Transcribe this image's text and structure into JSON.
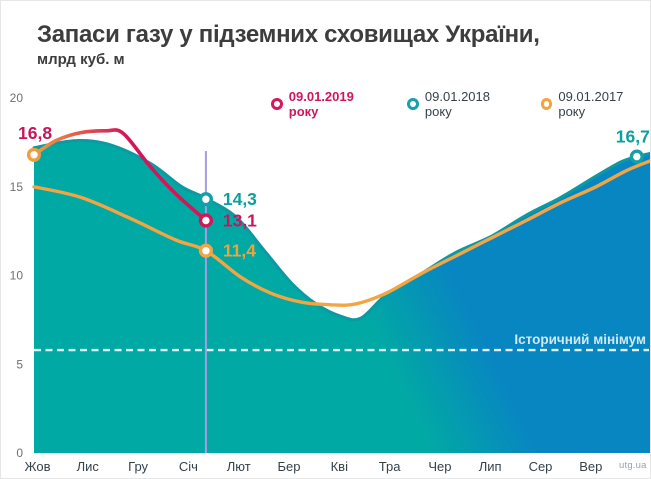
{
  "header": {
    "title": "Запаси газу у підземних сховищах України,",
    "subtitle": "млрд куб. м"
  },
  "legend": [
    {
      "label": "09.01.2019 року",
      "color": "#d8175c",
      "emphasis": true
    },
    {
      "label": "09.01.2018 року",
      "color": "#17a1a9",
      "emphasis": false
    },
    {
      "label": "09.01.2017 року",
      "color": "#f2a43f",
      "emphasis": false
    }
  ],
  "watermark": "utg.ua",
  "chart_data": {
    "type": "area",
    "title": "Запаси газу у підземних сховищах України, млрд куб. м",
    "x_categories": [
      "Жов",
      "Лис",
      "Гру",
      "Січ",
      "Лют",
      "Бер",
      "Кві",
      "Тра",
      "Чер",
      "Лип",
      "Сер",
      "Вер"
    ],
    "ylim": [
      0,
      20
    ],
    "yticks": [
      0,
      5,
      10,
      15,
      20
    ],
    "grid": false,
    "legend_position": "top",
    "annotation": {
      "label": "Історичний мінімум",
      "value": 5.8
    },
    "measure_line_x": 3.37,
    "colors": {
      "area_teal": "#01a9a4",
      "area_blue": "#0886c2",
      "stroke_2018": "#0c99a2",
      "line_2017": "#f2a542",
      "line_2019_start": "#ef9f3e",
      "line_2019_end": "#d3165a",
      "label_teal": "#0aa0a0",
      "label_crimson": "#cb155b",
      "label_orange": "#f0a23c",
      "measure_line": "#a99ce4",
      "dashed_line": "#ffffff",
      "annotation_text": "#cfe8f2",
      "ytick_text": "#707070",
      "xtick_text": "#36424a"
    },
    "series": [
      {
        "name": "09.01.2018 року",
        "style": "area",
        "points": [
          [
            0,
            17.2
          ],
          [
            0.82,
            17.6
          ],
          [
            1.51,
            17.35
          ],
          [
            2.29,
            16.3
          ],
          [
            2.9,
            15.0
          ],
          [
            3.37,
            14.35
          ],
          [
            3.96,
            13.3
          ],
          [
            4.49,
            11.5
          ],
          [
            5.04,
            9.6
          ],
          [
            5.53,
            8.4
          ],
          [
            6.02,
            7.7
          ],
          [
            6.41,
            7.6
          ],
          [
            6.9,
            8.9
          ],
          [
            7.59,
            10.1
          ],
          [
            8.27,
            11.3
          ],
          [
            8.96,
            12.2
          ],
          [
            9.65,
            13.4
          ],
          [
            10.33,
            14.4
          ],
          [
            11.02,
            15.6
          ],
          [
            11.51,
            16.4
          ],
          [
            11.82,
            16.7
          ],
          [
            12.12,
            16.9
          ]
        ],
        "markers": [
          {
            "x": 3.37,
            "y": 14.3,
            "label": "14,3",
            "color_key": "label_teal"
          },
          {
            "x": 11.82,
            "y": 16.7,
            "label": "16,7",
            "color_key": "label_teal"
          }
        ]
      },
      {
        "name": "09.01.2017 року",
        "style": "line",
        "points": [
          [
            0,
            15.0
          ],
          [
            0.92,
            14.4
          ],
          [
            1.9,
            13.2
          ],
          [
            2.78,
            12.0
          ],
          [
            3.37,
            11.4
          ],
          [
            4.06,
            9.9
          ],
          [
            4.65,
            9.0
          ],
          [
            5.24,
            8.5
          ],
          [
            5.82,
            8.35
          ],
          [
            6.31,
            8.4
          ],
          [
            6.9,
            9.0
          ],
          [
            7.59,
            10.1
          ],
          [
            8.27,
            11.1
          ],
          [
            8.96,
            12.1
          ],
          [
            9.65,
            13.1
          ],
          [
            10.33,
            14.1
          ],
          [
            11.02,
            15.0
          ],
          [
            11.61,
            15.9
          ],
          [
            12.12,
            16.5
          ]
        ],
        "markers": [
          {
            "x": 3.37,
            "y": 11.4,
            "label": "11,4",
            "color_key": "label_orange"
          }
        ]
      },
      {
        "name": "09.01.2019 року",
        "style": "line-gradient",
        "points": [
          [
            0,
            16.8
          ],
          [
            0.43,
            17.6
          ],
          [
            0.92,
            18.05
          ],
          [
            1.41,
            18.15
          ],
          [
            1.75,
            18.0
          ],
          [
            2.29,
            16.1
          ],
          [
            2.78,
            14.6
          ],
          [
            3.37,
            13.1
          ]
        ],
        "markers": [
          {
            "x": 0,
            "y": 16.8,
            "label": "16,8",
            "color_key": "label_crimson"
          },
          {
            "x": 3.37,
            "y": 13.1,
            "label": "13,1",
            "color_key": "label_crimson"
          }
        ]
      }
    ]
  }
}
